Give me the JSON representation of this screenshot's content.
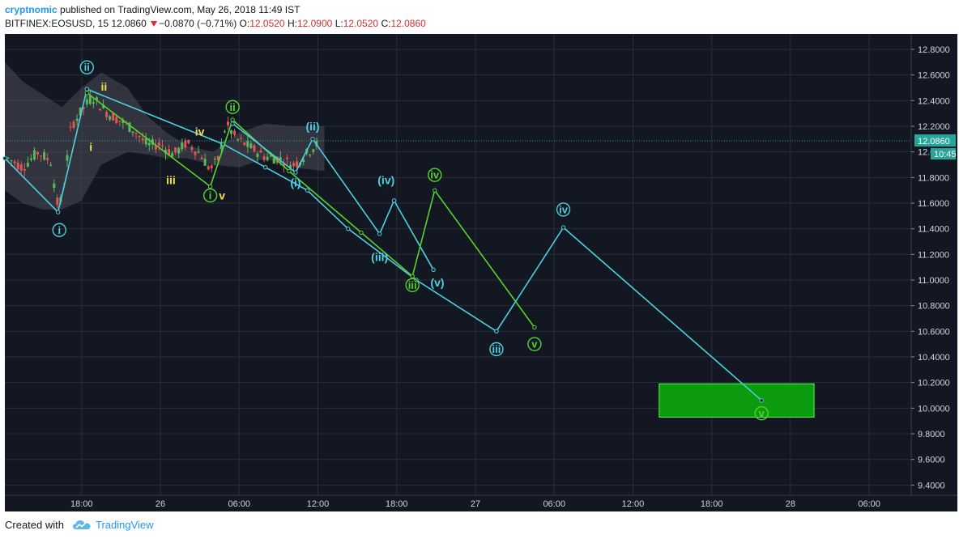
{
  "header": {
    "author": "cryptnomic",
    "published_text": "published on TradingView.com, May 26, 2018 11:49 IST",
    "symbol": "BITFINEX:EOSUSD, 15",
    "last": "12.0860",
    "change": "−0.0870 (−0.71%)",
    "o_label": "O:",
    "o_value": "12.0520",
    "h_label": "H:",
    "h_value": "12.0900",
    "l_label": "L:",
    "l_value": "12.0520",
    "c_label": "C:",
    "c_value": "12.0860"
  },
  "footer": {
    "created_with": "Created with",
    "brand": "TradingView"
  },
  "colors": {
    "background": "#131722",
    "grid": "#2a2e39",
    "cyan": "#4dd0e1",
    "green": "#55d42c",
    "yellow": "#f5e04d",
    "bull": "#5cb85c",
    "bear": "#e05555",
    "target_fill": "#0ca80c",
    "price_tag": "#26a69a"
  },
  "chart_data": {
    "type": "line",
    "y_ticks": [
      "12.8000",
      "12.6000",
      "12.4000",
      "12.2000",
      "12.0000",
      "11.8000",
      "11.6000",
      "11.4000",
      "11.2000",
      "11.0000",
      "10.8000",
      "10.6000",
      "10.4000",
      "10.2000",
      "10.0000",
      "9.8000",
      "9.6000",
      "9.4000"
    ],
    "ylim": [
      9.32,
      12.92
    ],
    "x_ticks": [
      {
        "label": "18:00",
        "t": 0
      },
      {
        "label": "26",
        "t": 6
      },
      {
        "label": "06:00",
        "t": 12
      },
      {
        "label": "12:00",
        "t": 18
      },
      {
        "label": "18:00",
        "t": 24
      },
      {
        "label": "27",
        "t": 30
      },
      {
        "label": "06:00",
        "t": 36
      },
      {
        "label": "12:00",
        "t": 42
      },
      {
        "label": "18:00",
        "t": 48
      },
      {
        "label": "28",
        "t": 54
      },
      {
        "label": "06:00",
        "t": 60
      }
    ],
    "xlim": [
      -5.85,
      63.2
    ],
    "last_price": "12.0860",
    "countdown": "10:45",
    "waves": [
      {
        "name": "cyan minor",
        "color": "cyan",
        "points": [
          [
            -5.85,
            11.95
          ],
          [
            -1.8,
            11.53
          ],
          [
            0.4,
            12.49
          ],
          [
            10.8,
            12.06
          ],
          [
            14.0,
            11.88
          ],
          [
            17.2,
            11.7
          ],
          [
            20.3,
            11.4
          ],
          [
            25.5,
            11.0
          ],
          [
            31.6,
            10.6
          ]
        ]
      },
      {
        "name": "green",
        "color": "green",
        "points": [
          [
            0.4,
            12.46
          ],
          [
            9.8,
            11.73
          ],
          [
            11.5,
            12.25
          ],
          [
            15.8,
            11.85
          ],
          [
            21.3,
            11.37
          ],
          [
            25.2,
            11.03
          ]
        ]
      },
      {
        "name": "cyan small",
        "color": "cyan",
        "points": [
          [
            11.5,
            12.22
          ],
          [
            16.3,
            11.84
          ],
          [
            17.6,
            12.1
          ],
          [
            22.7,
            11.36
          ],
          [
            23.8,
            11.62
          ],
          [
            26.8,
            11.08
          ]
        ]
      },
      {
        "name": "green 2",
        "color": "green",
        "points": [
          [
            25.2,
            11.03
          ],
          [
            26.9,
            11.7
          ],
          [
            34.5,
            10.63
          ]
        ]
      },
      {
        "name": "cyan major",
        "color": "cyan",
        "points": [
          [
            31.6,
            10.6
          ],
          [
            36.7,
            11.41
          ],
          [
            51.8,
            10.06
          ]
        ]
      }
    ],
    "labels": [
      {
        "text": "i",
        "x": -1.7,
        "y": 11.39,
        "color": "cyan",
        "circled": true
      },
      {
        "text": "ii",
        "x": 0.4,
        "y": 12.66,
        "color": "cyan",
        "circled": true
      },
      {
        "text": "ii",
        "x": 1.7,
        "y": 12.51,
        "color": "yellow",
        "circled": false
      },
      {
        "text": "i",
        "x": 0.7,
        "y": 12.04,
        "color": "yellow",
        "circled": false
      },
      {
        "text": "iii",
        "x": 6.8,
        "y": 11.78,
        "color": "yellow",
        "circled": false
      },
      {
        "text": "iv",
        "x": 9.0,
        "y": 12.16,
        "color": "yellow",
        "circled": false
      },
      {
        "text": "i",
        "x": 9.8,
        "y": 11.66,
        "color": "green",
        "circled": true
      },
      {
        "text": "v",
        "x": 10.7,
        "y": 11.66,
        "color": "yellow",
        "circled": false
      },
      {
        "text": "ii",
        "x": 11.5,
        "y": 12.35,
        "color": "green",
        "circled": true
      },
      {
        "text": "(i)",
        "x": 16.3,
        "y": 11.76,
        "color": "cyan",
        "circled": false
      },
      {
        "text": "(ii)",
        "x": 17.6,
        "y": 12.2,
        "color": "cyan",
        "circled": false
      },
      {
        "text": "(iii)",
        "x": 22.7,
        "y": 11.18,
        "color": "cyan",
        "circled": false
      },
      {
        "text": "(iv)",
        "x": 23.2,
        "y": 11.78,
        "color": "cyan",
        "circled": false
      },
      {
        "text": "(v)",
        "x": 27.1,
        "y": 10.98,
        "color": "cyan",
        "circled": false
      },
      {
        "text": "iii",
        "x": 25.2,
        "y": 10.96,
        "color": "green",
        "circled": true
      },
      {
        "text": "iv",
        "x": 26.9,
        "y": 11.82,
        "color": "green",
        "circled": true
      },
      {
        "text": "iii",
        "x": 31.6,
        "y": 10.46,
        "color": "cyan",
        "circled": true
      },
      {
        "text": "v",
        "x": 34.5,
        "y": 10.5,
        "color": "green",
        "circled": true
      },
      {
        "text": "iv",
        "x": 36.7,
        "y": 11.55,
        "color": "cyan",
        "circled": true
      },
      {
        "text": "v",
        "x": 51.8,
        "y": 9.96,
        "color": "green",
        "circled": true
      }
    ],
    "target_zone": {
      "x0": 44.0,
      "x1": 55.8,
      "y_low": 9.93,
      "y_high": 10.19
    },
    "cloud": {
      "points_top": [
        [
          -5.85,
          12.7
        ],
        [
          -4.5,
          12.55
        ],
        [
          -3.0,
          12.45
        ],
        [
          -1.5,
          12.35
        ],
        [
          0.0,
          12.5
        ],
        [
          1.5,
          12.62
        ],
        [
          3.5,
          12.5
        ],
        [
          5.0,
          12.28
        ],
        [
          6.5,
          12.15
        ],
        [
          8.0,
          12.05
        ],
        [
          10.0,
          12.0
        ],
        [
          12.0,
          12.15
        ],
        [
          14.0,
          12.22
        ],
        [
          16.0,
          12.2
        ],
        [
          18.5,
          12.2
        ],
        [
          18.5,
          12.2
        ]
      ],
      "points_bottom": [
        [
          18.5,
          11.85
        ],
        [
          16.0,
          11.88
        ],
        [
          14.0,
          11.95
        ],
        [
          12.0,
          11.88
        ],
        [
          10.0,
          11.9
        ],
        [
          8.0,
          11.95
        ],
        [
          6.5,
          11.95
        ],
        [
          5.0,
          11.98
        ],
        [
          3.5,
          12.0
        ],
        [
          1.5,
          11.9
        ],
        [
          0.0,
          11.62
        ],
        [
          -1.5,
          11.55
        ],
        [
          -3.0,
          11.55
        ],
        [
          -4.5,
          11.6
        ],
        [
          -5.85,
          11.7
        ]
      ]
    }
  }
}
